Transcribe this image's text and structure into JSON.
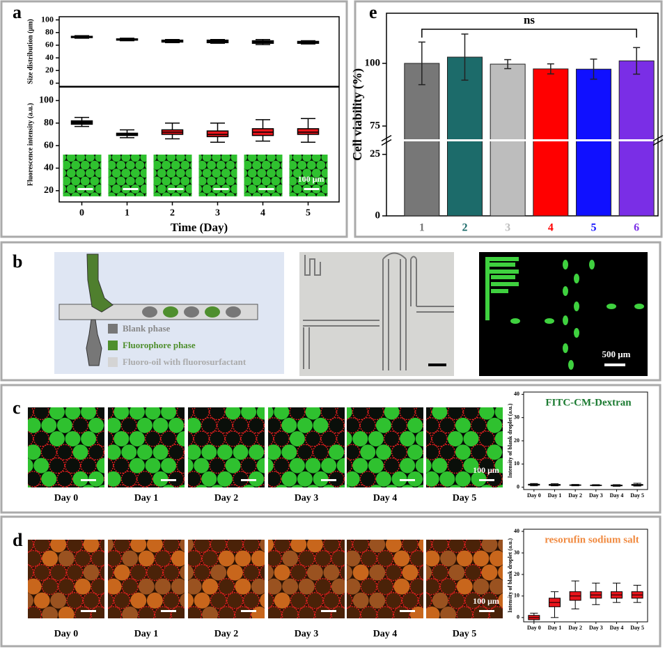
{
  "panel_labels": [
    "a",
    "b",
    "c",
    "d",
    "e"
  ],
  "panel_a": {
    "scale_bar": "100 μm"
  },
  "panel_b": {
    "legend": [
      "Blank phase",
      "Fluorophore phase",
      "Fluoro-oil with fluorosurfactant"
    ],
    "scale_bar": "500 μm"
  },
  "panel_c": {
    "days": [
      "Day 0",
      "Day 1",
      "Day 2",
      "Day 3",
      "Day 4",
      "Day 5"
    ],
    "scale_bar": "100 μm"
  },
  "panel_d": {
    "days": [
      "Day 0",
      "Day 1",
      "Day 2",
      "Day 3",
      "Day 4",
      "Day 5"
    ],
    "scale_bar": "100 μm"
  },
  "chart_data": [
    {
      "type": "box",
      "ylabel": "Size distribution (μm)",
      "min": [
        71,
        67,
        64,
        63,
        61,
        62
      ],
      "q1": [
        72,
        68,
        65,
        64,
        63,
        63
      ],
      "median": [
        73,
        69,
        66,
        66,
        65,
        64
      ],
      "q3": [
        74,
        70,
        68,
        68,
        67,
        66
      ],
      "max": [
        75,
        71,
        69,
        69,
        69,
        67
      ],
      "colors": [
        "#000000",
        "#000000",
        "#000000",
        "#000000",
        "#000000",
        "#000000"
      ],
      "ylim": [
        -5,
        105
      ],
      "yticks": [
        0,
        20,
        40,
        60,
        80,
        100
      ]
    },
    {
      "type": "box",
      "ylabel": "Fluorescence intensity (a.u.)",
      "xlabel": "Time (Day)",
      "categories": [
        "0",
        "1",
        "2",
        "3",
        "4",
        "5"
      ],
      "min": [
        77,
        67,
        66,
        63,
        64,
        63
      ],
      "q1": [
        79,
        69,
        70,
        68,
        69,
        70
      ],
      "median": [
        81,
        70,
        72,
        70,
        72,
        72
      ],
      "q3": [
        82,
        71,
        74,
        73,
        75,
        75
      ],
      "max": [
        85,
        74,
        80,
        80,
        83,
        84
      ],
      "colors": [
        "#000000",
        "#000000",
        "#e8141b",
        "#e8141b",
        "#e8141b",
        "#e8141b"
      ],
      "ylim": [
        10,
        112
      ],
      "yticks": [
        20,
        40,
        60,
        80,
        100
      ]
    },
    {
      "type": "bar",
      "ylabel": "Cell viability (%)",
      "annotation": "ns",
      "categories": [
        "1",
        "2",
        "3",
        "4",
        "5",
        "6"
      ],
      "values": [
        100,
        102.5,
        99.7,
        97.8,
        97.7,
        101
      ],
      "errors": [
        8.5,
        9.2,
        1.8,
        2.0,
        4.0,
        5.3
      ],
      "colors": [
        "#777777",
        "#1c6b6a",
        "#bdbdbd",
        "#ff0000",
        "#1010ff",
        "#7a2ee6"
      ],
      "ylim": [
        0,
        120
      ],
      "ybreak": [
        30,
        70
      ],
      "yticks": [
        0,
        25,
        75,
        100
      ]
    },
    {
      "type": "box",
      "title": "FITC-CM-Dextran",
      "title_color": "#1a7a30",
      "ylabel": "Intensity of blank droplet (a.u.)",
      "categories": [
        "Day 0",
        "Day 1",
        "Day 2",
        "Day 3",
        "Day 4",
        "Day 5"
      ],
      "min": [
        0.6,
        0.6,
        0.6,
        0.6,
        0.4,
        0.5
      ],
      "q1": [
        0.9,
        0.8,
        0.8,
        0.7,
        0.6,
        0.8
      ],
      "median": [
        1.1,
        1.0,
        0.9,
        0.8,
        0.8,
        1.0
      ],
      "q3": [
        1.3,
        1.2,
        1.0,
        0.9,
        0.9,
        1.2
      ],
      "max": [
        1.6,
        1.5,
        1.2,
        1.1,
        1.1,
        1.7
      ],
      "colors": [
        "#000000",
        "#000000",
        "#000000",
        "#000000",
        "#000000",
        "#000000"
      ],
      "ylim": [
        -1,
        41
      ],
      "yticks": [
        0,
        10,
        20,
        30,
        40
      ]
    },
    {
      "type": "box",
      "title": "resorufin sodium salt",
      "title_color": "#f08a40",
      "ylabel": "Intensity of blank droplet (a.u.)",
      "categories": [
        "Day 0",
        "Day 1",
        "Day 2",
        "Day 3",
        "Day 4",
        "Day 5"
      ],
      "min": [
        -2,
        0,
        4,
        6,
        7,
        7
      ],
      "q1": [
        -1,
        5,
        8,
        9,
        9,
        9
      ],
      "median": [
        0,
        7,
        10,
        10.5,
        10.5,
        10.5
      ],
      "q3": [
        1,
        9,
        12,
        12,
        12,
        12
      ],
      "max": [
        2,
        12,
        17,
        16,
        16,
        15
      ],
      "colors": [
        "#e8141b",
        "#e8141b",
        "#e8141b",
        "#e8141b",
        "#e8141b",
        "#e8141b"
      ],
      "ylim": [
        -2,
        41
      ],
      "yticks": [
        0,
        10,
        20,
        30,
        40
      ]
    }
  ]
}
